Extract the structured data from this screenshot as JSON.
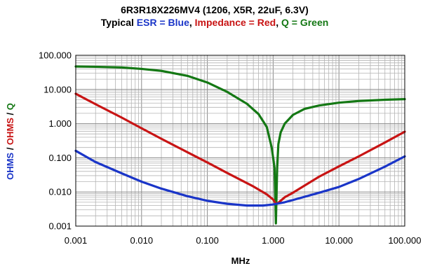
{
  "chart_data": {
    "type": "line",
    "title": "6R3R18X226MV4 (1206, X5R, 22uF, 6.3V)",
    "subtitle_parts": [
      {
        "text": "Typical ",
        "color": "#000000"
      },
      {
        "text": "ESR = Blue",
        "color": "#1a35c8"
      },
      {
        "text": ", ",
        "color": "#000000"
      },
      {
        "text": "Impedance = Red",
        "color": "#c81414"
      },
      {
        "text": ", ",
        "color": "#000000"
      },
      {
        "text": "Q = Green",
        "color": "#147814"
      }
    ],
    "xlabel": "MHz",
    "ylabel_parts": [
      {
        "text": "OHMS",
        "color": "#1a35c8"
      },
      {
        "text": " / ",
        "color": "#000000"
      },
      {
        "text": "OHMS",
        "color": "#c81414"
      },
      {
        "text": " / ",
        "color": "#000000"
      },
      {
        "text": "Q",
        "color": "#147814"
      }
    ],
    "x_scale": "log",
    "y_scale": "log",
    "xlim": [
      0.001,
      100
    ],
    "ylim": [
      0.001,
      100
    ],
    "grid": true,
    "x_ticks": [
      {
        "value": 0.001,
        "label": "0.001"
      },
      {
        "value": 0.01,
        "label": "0.010"
      },
      {
        "value": 0.1,
        "label": "0.100"
      },
      {
        "value": 1,
        "label": "1.000"
      },
      {
        "value": 10,
        "label": "10.000"
      },
      {
        "value": 100,
        "label": "100.000"
      }
    ],
    "y_ticks": [
      {
        "value": 0.001,
        "label": "0.001"
      },
      {
        "value": 0.01,
        "label": "0.010"
      },
      {
        "value": 0.1,
        "label": "0.100"
      },
      {
        "value": 1,
        "label": "1.000"
      },
      {
        "value": 10,
        "label": "10.000"
      },
      {
        "value": 100,
        "label": "100.000"
      }
    ],
    "series": [
      {
        "color": "#147814",
        "x": [
          0.001,
          0.002,
          0.005,
          0.01,
          0.02,
          0.05,
          0.1,
          0.2,
          0.4,
          0.6,
          0.8,
          0.95,
          1.05,
          1.1,
          1.15,
          1.2,
          1.3,
          1.5,
          2,
          3,
          5,
          10,
          20,
          50,
          100
        ],
        "y": [
          47,
          46,
          44,
          40,
          35,
          25,
          16,
          8.5,
          3.8,
          1.9,
          0.8,
          0.2,
          0.05,
          0.0012,
          0.05,
          0.25,
          0.55,
          1.0,
          1.8,
          2.7,
          3.4,
          4.1,
          4.6,
          5.0,
          5.2
        ]
      },
      {
        "color": "#c81414",
        "x": [
          0.001,
          0.002,
          0.005,
          0.01,
          0.02,
          0.05,
          0.1,
          0.2,
          0.5,
          0.8,
          1.0,
          1.1,
          1.2,
          1.5,
          2,
          5,
          10,
          20,
          50,
          100
        ],
        "y": [
          7.5,
          3.7,
          1.5,
          0.73,
          0.36,
          0.145,
          0.073,
          0.036,
          0.0145,
          0.0085,
          0.006,
          0.0045,
          0.0048,
          0.007,
          0.0095,
          0.028,
          0.056,
          0.11,
          0.28,
          0.58
        ]
      },
      {
        "color": "#1a35c8",
        "x": [
          0.001,
          0.002,
          0.005,
          0.01,
          0.02,
          0.05,
          0.1,
          0.2,
          0.4,
          0.7,
          1.0,
          1.5,
          2,
          5,
          10,
          20,
          50,
          100
        ],
        "y": [
          0.16,
          0.075,
          0.035,
          0.02,
          0.0125,
          0.0075,
          0.0055,
          0.0045,
          0.004,
          0.004,
          0.0043,
          0.005,
          0.0058,
          0.0095,
          0.014,
          0.024,
          0.055,
          0.11
        ]
      }
    ]
  }
}
